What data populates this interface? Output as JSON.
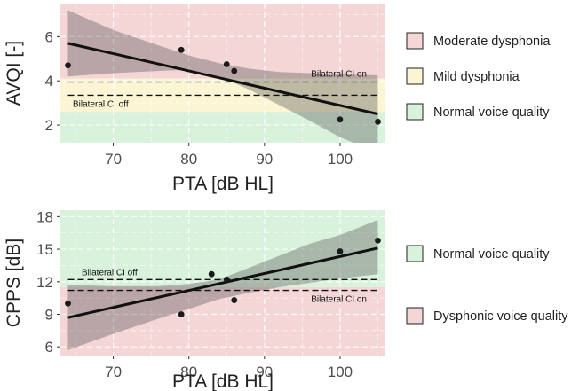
{
  "chart_data": [
    {
      "type": "scatter",
      "title": "",
      "xlabel": "PTA [dB HL]",
      "ylabel": "AVQI [-]",
      "xlim": [
        63,
        106
      ],
      "ylim": [
        1.2,
        7.5
      ],
      "xticks": [
        70,
        80,
        90,
        100
      ],
      "yticks": [
        2,
        4,
        6
      ],
      "grid": true,
      "points": [
        {
          "x": 64,
          "y": 4.7
        },
        {
          "x": 79,
          "y": 5.4
        },
        {
          "x": 85,
          "y": 4.75
        },
        {
          "x": 86,
          "y": 4.45
        },
        {
          "x": 100,
          "y": 2.25
        },
        {
          "x": 105,
          "y": 2.15
        }
      ],
      "fit": {
        "x": [
          64,
          105
        ],
        "y": [
          5.7,
          2.5
        ]
      },
      "confidence_band": {
        "x": [
          64,
          70,
          76,
          80,
          84,
          88,
          92,
          96,
          100,
          105
        ],
        "upper": [
          7.2,
          6.3,
          5.6,
          5.15,
          4.8,
          4.55,
          4.4,
          4.35,
          4.3,
          4.25
        ],
        "lower": [
          4.2,
          4.35,
          4.45,
          4.5,
          4.2,
          3.6,
          2.9,
          2.2,
          1.45,
          0.75
        ]
      },
      "reference_lines": [
        {
          "label": "Bilateral CI on",
          "y": 3.95
        },
        {
          "label": "Bilateral CI off",
          "y": 3.35
        }
      ],
      "regions": [
        {
          "label": "Moderate dysphonia",
          "from": 4.1,
          "to": 7.5,
          "color": "#f4d6d7"
        },
        {
          "label": "Mild dysphonia",
          "from": 2.6,
          "to": 4.1,
          "color": "#fbf5d3"
        },
        {
          "label": "Normal voice quality",
          "from": 1.2,
          "to": 2.6,
          "color": "#d9f2dc"
        }
      ],
      "colors": {
        "point": "#1a1a1a",
        "fit": "#111111",
        "band": "#4a4a4a",
        "grid": "#ffffff"
      }
    },
    {
      "type": "scatter",
      "title": "",
      "xlabel": "PTA [dB HL]",
      "ylabel": "CPPS [dB]",
      "xlim": [
        63,
        106
      ],
      "ylim": [
        5.2,
        18.6
      ],
      "xticks": [
        70,
        80,
        90,
        100
      ],
      "yticks": [
        6,
        9,
        12,
        15,
        18
      ],
      "grid": true,
      "points": [
        {
          "x": 64,
          "y": 10.0
        },
        {
          "x": 79,
          "y": 9.0
        },
        {
          "x": 83,
          "y": 12.7
        },
        {
          "x": 85,
          "y": 12.2
        },
        {
          "x": 86,
          "y": 10.3
        },
        {
          "x": 100,
          "y": 14.8
        },
        {
          "x": 105,
          "y": 15.8
        }
      ],
      "fit": {
        "x": [
          64,
          105
        ],
        "y": [
          8.7,
          15.1
        ]
      },
      "confidence_band": {
        "x": [
          64,
          70,
          76,
          80,
          84,
          88,
          92,
          96,
          100,
          105
        ],
        "upper": [
          11.7,
          11.6,
          11.6,
          11.8,
          12.2,
          13.3,
          14.4,
          15.5,
          16.3,
          17.7
        ],
        "lower": [
          5.7,
          7.2,
          8.6,
          9.5,
          10.4,
          11.0,
          11.5,
          11.9,
          12.3,
          12.7
        ]
      },
      "reference_lines": [
        {
          "label": "Bilateral CI off",
          "y": 12.2
        },
        {
          "label": "Bilateral CI on",
          "y": 11.2
        }
      ],
      "regions": [
        {
          "label": "Normal voice quality",
          "from": 11.5,
          "to": 18.6,
          "color": "#d9f2dc"
        },
        {
          "label": "Dysphonic voice quality",
          "from": 5.2,
          "to": 11.5,
          "color": "#f4d6d7"
        }
      ],
      "colors": {
        "point": "#1a1a1a",
        "fit": "#111111",
        "band": "#4a4a4a",
        "grid": "#ffffff"
      }
    }
  ]
}
